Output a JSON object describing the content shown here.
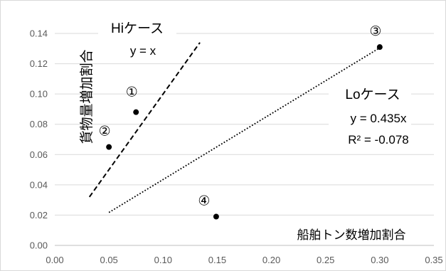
{
  "chart_data": {
    "type": "scatter",
    "xlabel": "船舶トン数増加割合",
    "ylabel": "貨物量増加割合",
    "xlim": [
      0,
      0.35
    ],
    "ylim": [
      0,
      0.14
    ],
    "x_ticks": [
      "0.00",
      "0.05",
      "0.10",
      "0.15",
      "0.20",
      "0.25",
      "0.30",
      "0.35"
    ],
    "y_ticks": [
      "0.00",
      "0.02",
      "0.04",
      "0.06",
      "0.08",
      "0.10",
      "0.12",
      "0.14"
    ],
    "grid": "horizontal",
    "points": [
      {
        "label": "①",
        "x": 0.075,
        "y": 0.088
      },
      {
        "label": "②",
        "x": 0.05,
        "y": 0.065
      },
      {
        "label": "③",
        "x": 0.3,
        "y": 0.131
      },
      {
        "label": "④",
        "x": 0.149,
        "y": 0.019
      }
    ],
    "lines": [
      {
        "name": "Hiケース",
        "equation": "y = x",
        "slope": 1,
        "style": "dashed",
        "x_range": [
          0.032,
          0.134
        ]
      },
      {
        "name": "Loケース",
        "equation": "y = 0.435x",
        "r2": "R² = -0.078",
        "slope": 0.435,
        "style": "dotted",
        "x_range": [
          0.05,
          0.3
        ]
      }
    ],
    "colors": {
      "grid": "#d9d9d9",
      "axis": "#bfbfbf",
      "tick_text": "#595959",
      "marker": "#000000"
    }
  }
}
